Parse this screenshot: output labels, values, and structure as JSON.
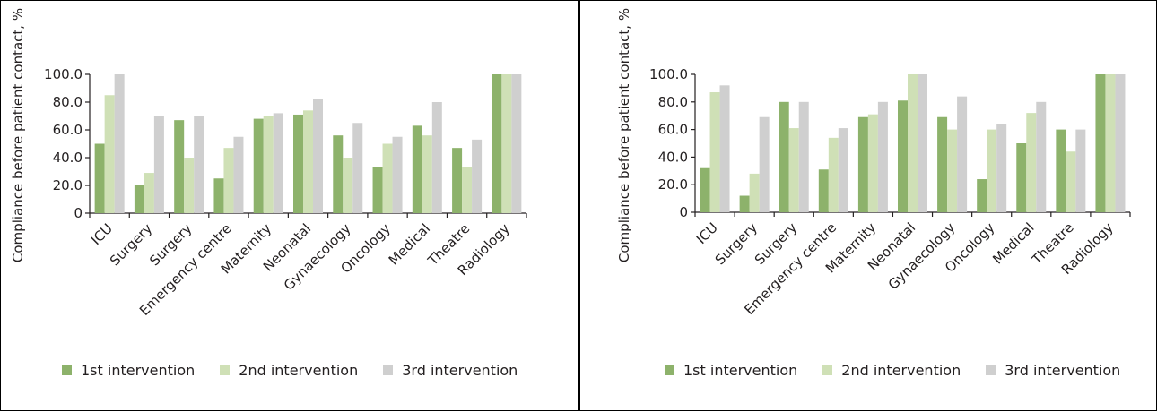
{
  "colors": {
    "first": "#8db26b",
    "second": "#cfe0b6",
    "third": "#cfcfcf",
    "axis": "#231f20"
  },
  "chart_data": [
    {
      "type": "bar",
      "ylabel": "Compliance before patient contact, %",
      "ylim": [
        0,
        100
      ],
      "yticks": [
        "0",
        "20.0",
        "40.0",
        "60.0",
        "80.0",
        "100.0"
      ],
      "categories": [
        "ICU",
        "Surgery",
        "Surgery",
        "Emergency centre",
        "Maternity",
        "Neonatal",
        "Gynaecology",
        "Oncology",
        "Medical",
        "Theatre",
        "Radiology"
      ],
      "series": [
        {
          "name": "1st intervention",
          "values": [
            50,
            20,
            67,
            25,
            68,
            71,
            56,
            33,
            63,
            47,
            100
          ]
        },
        {
          "name": "2nd intervention",
          "values": [
            85,
            29,
            40,
            47,
            70,
            74,
            40,
            50,
            56,
            33,
            100
          ]
        },
        {
          "name": "3rd intervention",
          "values": [
            100,
            70,
            70,
            55,
            72,
            82,
            65,
            55,
            80,
            53,
            100
          ]
        }
      ],
      "legend_position": "bottom",
      "grid": false
    },
    {
      "type": "bar",
      "ylabel": "Compliance before patient contact, %",
      "ylim": [
        0,
        100
      ],
      "yticks": [
        "0",
        "20.0",
        "40.0",
        "60.0",
        "80.0",
        "100.0"
      ],
      "categories": [
        "ICU",
        "Surgery",
        "Surgery",
        "Emergency centre",
        "Maternity",
        "Neonatal",
        "Gynaecology",
        "Oncology",
        "Medical",
        "Theatre",
        "Radiology"
      ],
      "series": [
        {
          "name": "1st intervention",
          "values": [
            32,
            12,
            80,
            31,
            69,
            81,
            69,
            24,
            50,
            60,
            100
          ]
        },
        {
          "name": "2nd intervention",
          "values": [
            87,
            28,
            61,
            54,
            71,
            100,
            60,
            60,
            72,
            44,
            100
          ]
        },
        {
          "name": "3rd intervention",
          "values": [
            92,
            69,
            80,
            61,
            80,
            100,
            84,
            64,
            80,
            60,
            100
          ]
        }
      ],
      "legend_position": "bottom",
      "grid": false
    }
  ]
}
